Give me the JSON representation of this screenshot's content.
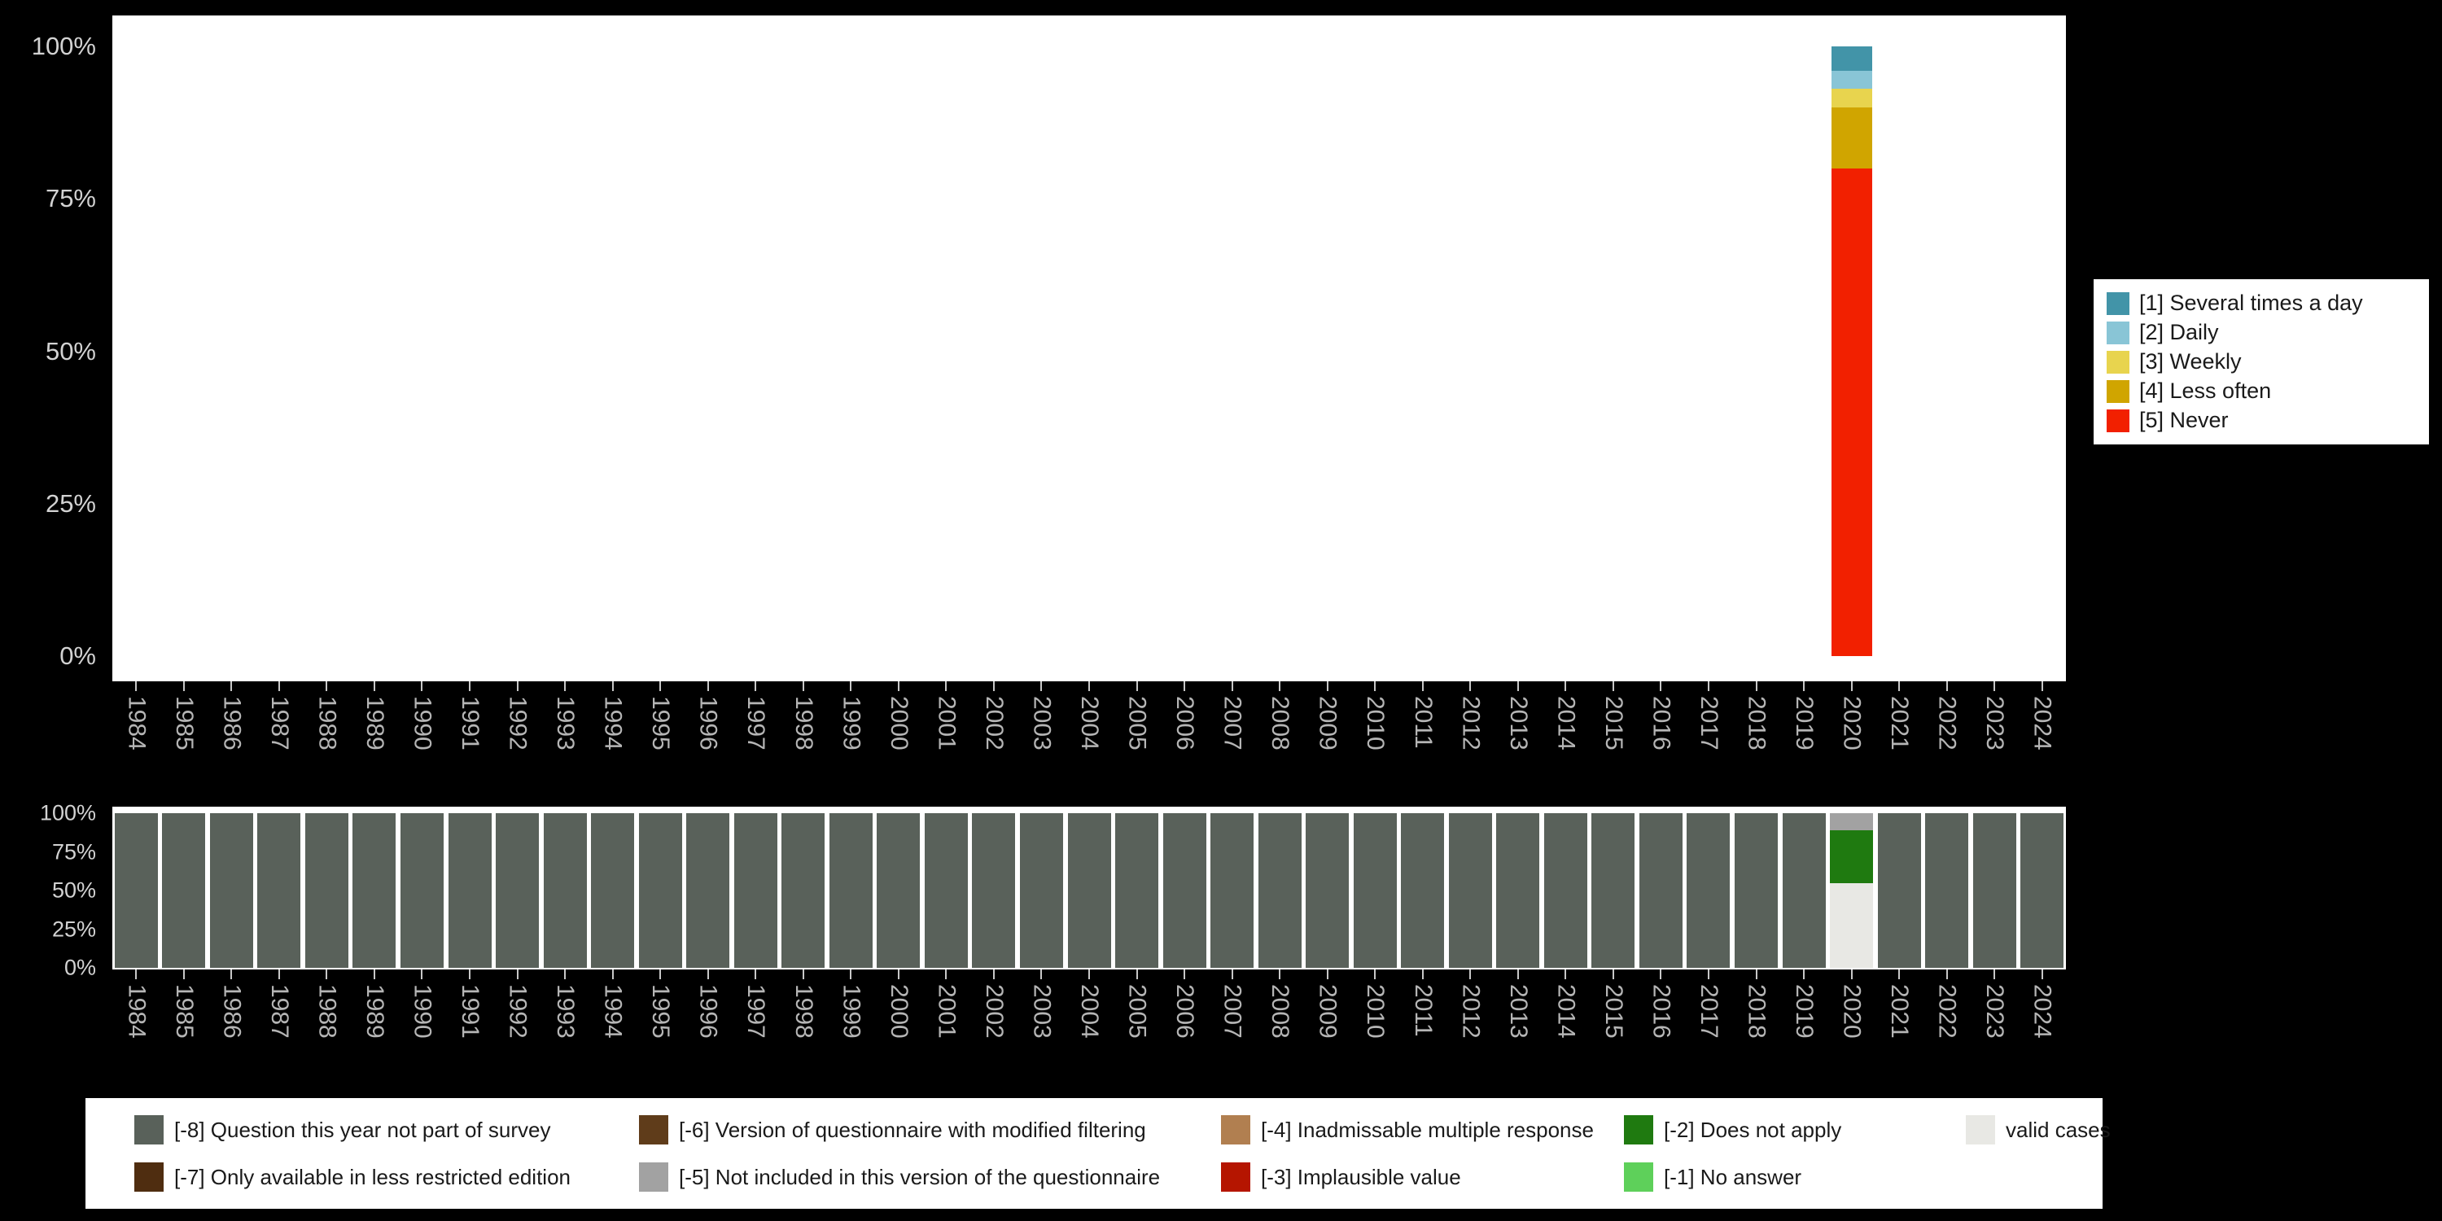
{
  "page": {
    "background": "#000000",
    "axis_text_color": "#b5b5b5"
  },
  "chart_data": [
    {
      "id": "frequency-distribution",
      "type": "bar",
      "stacked": true,
      "orientation": "vertical",
      "grid": false,
      "legend_position": "right",
      "ylim": [
        0,
        100
      ],
      "ytick_labels": [
        "100%",
        "75%",
        "50%",
        "25%",
        "0%"
      ],
      "x": [
        "1984",
        "1985",
        "1986",
        "1987",
        "1988",
        "1989",
        "1990",
        "1991",
        "1992",
        "1993",
        "1994",
        "1995",
        "1996",
        "1997",
        "1998",
        "1999",
        "2000",
        "2001",
        "2002",
        "2003",
        "2004",
        "2005",
        "2006",
        "2007",
        "2008",
        "2009",
        "2010",
        "2011",
        "2012",
        "2013",
        "2014",
        "2015",
        "2016",
        "2017",
        "2018",
        "2019",
        "2020",
        "2021",
        "2022",
        "2023",
        "2024"
      ],
      "series": [
        {
          "name": "[5] Never",
          "color": "#f22000",
          "default": 0,
          "values": {
            "2020": 80
          }
        },
        {
          "name": "[4] Less often",
          "color": "#d0a500",
          "default": 0,
          "values": {
            "2020": 10
          }
        },
        {
          "name": "[3] Weekly",
          "color": "#e8d44e",
          "default": 0,
          "values": {
            "2020": 3
          }
        },
        {
          "name": "[2] Daily",
          "color": "#89c5d6",
          "default": 0,
          "values": {
            "2020": 3
          }
        },
        {
          "name": "[1] Several times a day",
          "color": "#4294a8",
          "default": 0,
          "values": {
            "2020": 4
          }
        }
      ]
    },
    {
      "id": "missing-values",
      "type": "bar",
      "stacked": true,
      "orientation": "vertical",
      "grid": false,
      "legend_position": "bottom",
      "ylim": [
        0,
        100
      ],
      "ytick_labels": [
        "100%",
        "75%",
        "50%",
        "25%",
        "0%"
      ],
      "x": [
        "1984",
        "1985",
        "1986",
        "1987",
        "1988",
        "1989",
        "1990",
        "1991",
        "1992",
        "1993",
        "1994",
        "1995",
        "1996",
        "1997",
        "1998",
        "1999",
        "2000",
        "2001",
        "2002",
        "2003",
        "2004",
        "2005",
        "2006",
        "2007",
        "2008",
        "2009",
        "2010",
        "2011",
        "2012",
        "2013",
        "2014",
        "2015",
        "2016",
        "2017",
        "2018",
        "2019",
        "2020",
        "2021",
        "2022",
        "2023",
        "2024"
      ],
      "series": [
        {
          "name": "valid cases",
          "color": "#e8e8e4",
          "default": 0,
          "values": {
            "2020": 55
          }
        },
        {
          "name": "[-2] Does not apply",
          "color": "#1f7a10",
          "default": 0,
          "values": {
            "2020": 34
          }
        },
        {
          "name": "[-5] Not included in this version of the questionnaire",
          "color": "#a2a2a2",
          "default": 0,
          "values": {
            "2020": 11
          }
        },
        {
          "name": "[-8] Question this year not part of survey",
          "color": "#59615a",
          "default": 100,
          "values": {
            "2020": 0
          }
        }
      ]
    }
  ],
  "missing_legend": {
    "items": [
      {
        "label": "[-8] Question this year not part of survey",
        "color": "#59615a"
      },
      {
        "label": "[-7] Only available in less restricted edition",
        "color": "#4f2d10"
      },
      {
        "label": "[-6] Version of questionnaire with modified filtering",
        "color": "#5f3c1a"
      },
      {
        "label": "[-5] Not included in this version of the questionnaire",
        "color": "#a2a2a2"
      },
      {
        "label": "[-4] Inadmissable multiple response",
        "color": "#b17f50"
      },
      {
        "label": "[-3] Implausible value",
        "color": "#b51500"
      },
      {
        "label": "[-2] Does not apply",
        "color": "#1f7a10"
      },
      {
        "label": "[-1] No answer",
        "color": "#5ed05a"
      },
      {
        "label": "valid cases",
        "color": "#e8e8e4"
      }
    ]
  }
}
